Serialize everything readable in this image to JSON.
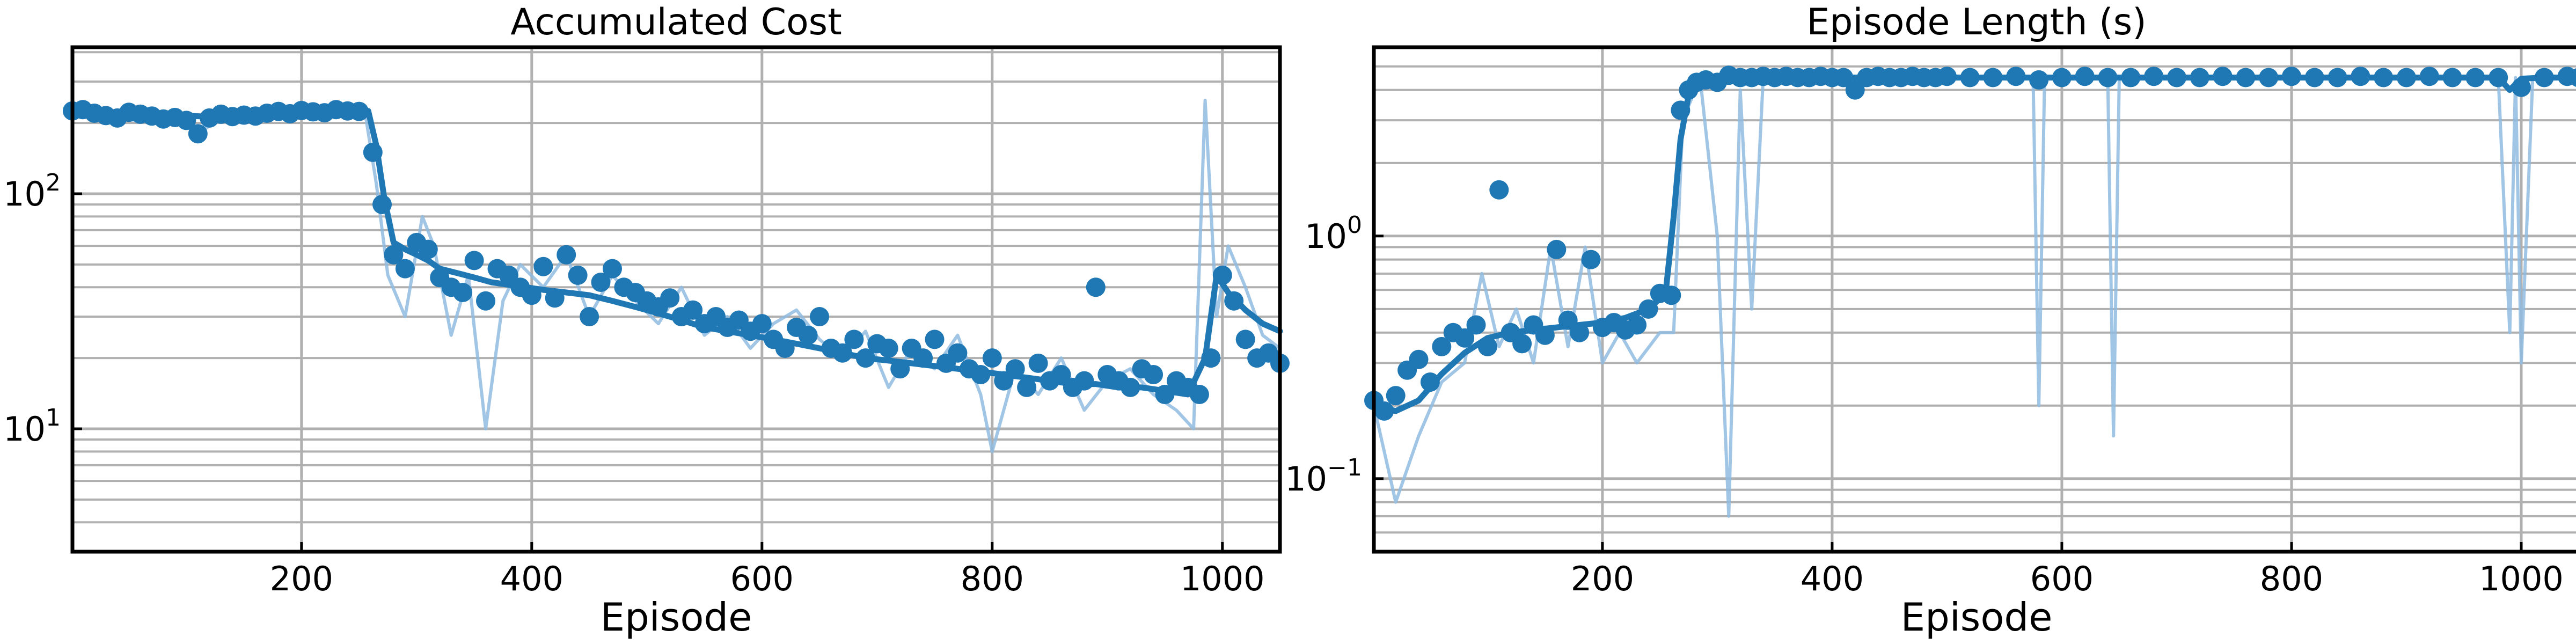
{
  "figure": {
    "background": "#ffffff",
    "line_color": "#1f77b4",
    "raw_line_color": "#8fbbe0",
    "grid_color": "#b0b0b0",
    "axis_color": "#000000"
  },
  "chart_data": [
    {
      "id": "cost",
      "type": "line",
      "title": "Accumulated Cost",
      "xlabel": "Episode",
      "ylabel": "",
      "yscale": "log",
      "grid": true,
      "xlim": [
        1,
        1050
      ],
      "ylim": [
        3.0,
        420
      ],
      "xticks": [
        {
          "value": 200,
          "label": "200"
        },
        {
          "value": 400,
          "label": "400"
        },
        {
          "value": 600,
          "label": "600"
        },
        {
          "value": 800,
          "label": "800"
        },
        {
          "value": 1000,
          "label": "1000"
        }
      ],
      "yticks": [
        {
          "value": 10,
          "base": "10",
          "exp": "1"
        },
        {
          "value": 100,
          "base": "10",
          "exp": "2"
        }
      ],
      "series": [
        {
          "kind": "raw",
          "x": [
            1,
            30,
            60,
            90,
            110,
            130,
            160,
            190,
            220,
            255,
            265,
            275,
            290,
            305,
            315,
            330,
            345,
            360,
            375,
            390,
            410,
            430,
            450,
            470,
            490,
            510,
            530,
            550,
            570,
            590,
            610,
            630,
            650,
            670,
            690,
            710,
            730,
            750,
            770,
            790,
            800,
            820,
            840,
            860,
            880,
            900,
            920,
            940,
            960,
            975,
            985,
            995,
            1005,
            1020,
            1035,
            1050
          ],
          "y": [
            230,
            210,
            205,
            220,
            180,
            210,
            225,
            220,
            230,
            225,
            110,
            45,
            30,
            80,
            60,
            25,
            45,
            10,
            35,
            50,
            40,
            55,
            30,
            45,
            35,
            28,
            40,
            25,
            30,
            22,
            28,
            32,
            24,
            20,
            26,
            15,
            22,
            18,
            25,
            14,
            8,
            18,
            14,
            20,
            12,
            16,
            18,
            14,
            12,
            10,
            250,
            30,
            60,
            40,
            25,
            22
          ]
        },
        {
          "kind": "smoothed",
          "x": [
            1,
            30,
            60,
            90,
            120,
            150,
            180,
            210,
            240,
            258,
            265,
            272,
            280,
            290,
            300,
            310,
            320,
            335,
            350,
            365,
            380,
            395,
            410,
            430,
            450,
            470,
            490,
            510,
            530,
            550,
            570,
            590,
            610,
            630,
            650,
            670,
            690,
            710,
            730,
            750,
            770,
            790,
            810,
            830,
            850,
            870,
            890,
            910,
            930,
            950,
            970,
            985,
            995,
            1005,
            1020,
            1035,
            1050
          ],
          "y": [
            225,
            222,
            218,
            215,
            213,
            214,
            218,
            222,
            226,
            225,
            160,
            95,
            62,
            58,
            55,
            52,
            48,
            46,
            44,
            42,
            41,
            40,
            39,
            38,
            37,
            35,
            33,
            31,
            29,
            27,
            26,
            25,
            24,
            23,
            22,
            21,
            20,
            19.5,
            19,
            18.5,
            18,
            17.5,
            17,
            16.5,
            16,
            15.5,
            15.5,
            15,
            15,
            14.5,
            14,
            20,
            45,
            38,
            32,
            28,
            26
          ]
        },
        {
          "kind": "markers",
          "x": [
            1,
            10,
            20,
            30,
            40,
            50,
            60,
            70,
            80,
            90,
            100,
            110,
            120,
            130,
            140,
            150,
            160,
            170,
            180,
            190,
            200,
            210,
            220,
            230,
            240,
            250,
            262,
            270,
            280,
            290,
            300,
            310,
            320,
            330,
            340,
            350,
            360,
            370,
            380,
            390,
            400,
            410,
            420,
            430,
            440,
            450,
            460,
            470,
            480,
            490,
            500,
            510,
            520,
            530,
            540,
            550,
            560,
            570,
            580,
            590,
            600,
            610,
            620,
            630,
            640,
            650,
            660,
            670,
            680,
            690,
            700,
            710,
            720,
            730,
            740,
            750,
            760,
            770,
            780,
            790,
            800,
            810,
            820,
            830,
            840,
            850,
            860,
            870,
            880,
            890,
            900,
            910,
            920,
            930,
            940,
            950,
            960,
            970,
            980,
            990,
            1000,
            1010,
            1020,
            1030,
            1040,
            1050
          ],
          "y": [
            225,
            228,
            220,
            215,
            210,
            222,
            218,
            214,
            208,
            211,
            205,
            180,
            210,
            218,
            213,
            216,
            214,
            220,
            224,
            219,
            226,
            223,
            221,
            228,
            225,
            224,
            150,
            90,
            55,
            48,
            62,
            58,
            44,
            40,
            38,
            52,
            35,
            48,
            45,
            40,
            37,
            49,
            36,
            55,
            45,
            30,
            42,
            48,
            40,
            38,
            35,
            33,
            36,
            30,
            32,
            28,
            30,
            27,
            29,
            26,
            28,
            24,
            22,
            27,
            25,
            30,
            22,
            21,
            24,
            20,
            23,
            22,
            18,
            22,
            20,
            24,
            19,
            21,
            18,
            17,
            20,
            16,
            18,
            15,
            19,
            16,
            17,
            15,
            16,
            40,
            17,
            16,
            15,
            18,
            17,
            14,
            16,
            15,
            14,
            20,
            45,
            35,
            24,
            20,
            21,
            19
          ]
        }
      ]
    },
    {
      "id": "length",
      "type": "line",
      "title": "Episode Length (s)",
      "xlabel": "Episode",
      "ylabel": "",
      "yscale": "log",
      "grid": true,
      "xlim": [
        1,
        1050
      ],
      "ylim": [
        0.05,
        6.0
      ],
      "xticks": [
        {
          "value": 200,
          "label": "200"
        },
        {
          "value": 400,
          "label": "400"
        },
        {
          "value": 600,
          "label": "600"
        },
        {
          "value": 800,
          "label": "800"
        },
        {
          "value": 1000,
          "label": "1000"
        }
      ],
      "yticks": [
        {
          "value": 0.1,
          "base": "10",
          "exp": "−1"
        },
        {
          "value": 1,
          "base": "10",
          "exp": "0"
        }
      ],
      "series": [
        {
          "kind": "raw",
          "x": [
            1,
            20,
            40,
            60,
            80,
            95,
            110,
            125,
            140,
            155,
            170,
            185,
            200,
            215,
            230,
            250,
            262,
            270,
            285,
            300,
            310,
            320,
            330,
            340,
            360,
            380,
            400,
            420,
            440,
            460,
            480,
            500,
            520,
            540,
            560,
            575,
            580,
            585,
            600,
            640,
            645,
            650,
            700,
            800,
            900,
            980,
            990,
            995,
            1000,
            1010,
            1030,
            1050
          ],
          "y": [
            0.2,
            0.08,
            0.15,
            0.25,
            0.3,
            0.7,
            0.35,
            0.5,
            0.3,
            0.9,
            0.35,
            0.9,
            0.3,
            0.4,
            0.3,
            0.4,
            0.4,
            3.0,
            4.5,
            1.0,
            0.07,
            4.0,
            0.5,
            4.5,
            4.5,
            4.5,
            4.5,
            4.5,
            4.5,
            4.5,
            4.5,
            4.5,
            4.5,
            4.5,
            4.5,
            4.5,
            0.2,
            4.5,
            4.5,
            4.5,
            0.15,
            4.5,
            4.5,
            4.5,
            4.5,
            4.5,
            0.4,
            4.5,
            0.3,
            4.5,
            4.5,
            4.5
          ]
        },
        {
          "kind": "smoothed",
          "x": [
            1,
            20,
            40,
            60,
            80,
            100,
            120,
            140,
            160,
            180,
            200,
            220,
            240,
            255,
            262,
            268,
            275,
            282,
            290,
            300,
            320,
            340,
            380,
            420,
            500,
            600,
            700,
            800,
            900,
            980,
            990,
            1000,
            1020,
            1050
          ],
          "y": [
            0.2,
            0.19,
            0.21,
            0.27,
            0.33,
            0.38,
            0.4,
            0.41,
            0.42,
            0.43,
            0.44,
            0.46,
            0.5,
            0.58,
            1.2,
            2.5,
            3.8,
            4.1,
            4.2,
            4.3,
            4.4,
            4.45,
            4.48,
            4.5,
            4.5,
            4.5,
            4.5,
            4.5,
            4.5,
            4.5,
            4.0,
            4.45,
            4.5,
            4.5
          ]
        },
        {
          "kind": "markers",
          "x": [
            1,
            10,
            20,
            30,
            40,
            50,
            60,
            70,
            80,
            90,
            100,
            110,
            120,
            130,
            140,
            150,
            160,
            170,
            180,
            190,
            200,
            210,
            220,
            230,
            240,
            250,
            260,
            268,
            275,
            282,
            290,
            300,
            310,
            320,
            330,
            340,
            350,
            360,
            370,
            380,
            390,
            400,
            410,
            420,
            430,
            440,
            450,
            460,
            470,
            480,
            490,
            500,
            520,
            540,
            560,
            580,
            600,
            620,
            640,
            660,
            680,
            700,
            720,
            740,
            760,
            780,
            800,
            820,
            840,
            860,
            880,
            900,
            920,
            940,
            960,
            980,
            1000,
            1020,
            1040,
            1050
          ],
          "y": [
            0.21,
            0.19,
            0.22,
            0.28,
            0.31,
            0.25,
            0.35,
            0.4,
            0.38,
            0.43,
            0.35,
            1.55,
            0.4,
            0.36,
            0.43,
            0.39,
            0.88,
            0.45,
            0.4,
            0.8,
            0.42,
            0.44,
            0.41,
            0.43,
            0.5,
            0.58,
            0.57,
            3.3,
            4.0,
            4.3,
            4.4,
            4.3,
            4.6,
            4.5,
            4.5,
            4.55,
            4.5,
            4.55,
            4.5,
            4.5,
            4.55,
            4.5,
            4.5,
            4.0,
            4.5,
            4.55,
            4.5,
            4.5,
            4.55,
            4.5,
            4.5,
            4.55,
            4.5,
            4.5,
            4.55,
            4.4,
            4.5,
            4.55,
            4.5,
            4.5,
            4.55,
            4.5,
            4.5,
            4.55,
            4.5,
            4.5,
            4.55,
            4.5,
            4.5,
            4.55,
            4.5,
            4.5,
            4.55,
            4.5,
            4.5,
            4.5,
            4.1,
            4.5,
            4.55,
            4.5
          ]
        }
      ]
    }
  ]
}
